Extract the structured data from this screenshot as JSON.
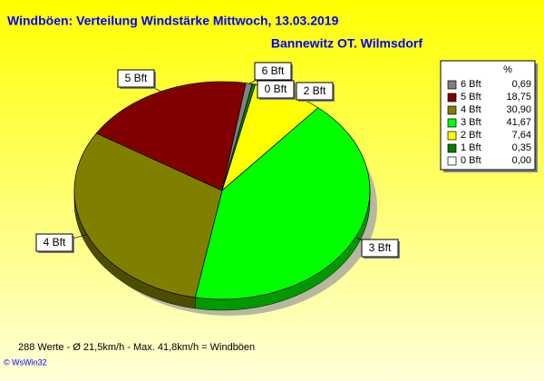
{
  "chart_data": {
    "type": "pie",
    "title": "Windböen: Verteilung Windstärke  Mittwoch, 13.03.2019",
    "subtitle": "Bannewitz OT. Wilmsdorf",
    "legend_title": "%",
    "categories": [
      "6 Bft",
      "5 Bft",
      "4 Bft",
      "3 Bft",
      "2 Bft",
      "1 Bft",
      "0 Bft"
    ],
    "values": [
      0.69,
      18.75,
      30.9,
      41.67,
      7.64,
      0.35,
      0.0
    ],
    "value_labels": [
      "0,69",
      "18,75",
      "30,90",
      "41,67",
      "7,64",
      "0,35",
      "0,00"
    ],
    "colors": [
      "#808080",
      "#800000",
      "#808000",
      "#00ff00",
      "#ffff00",
      "#008000",
      "#ffffff"
    ],
    "footer": "288 Werte   -   Ø 21,5km/h   -   Max. 41,8km/h = Windböen",
    "credit": "© WsWin32"
  }
}
